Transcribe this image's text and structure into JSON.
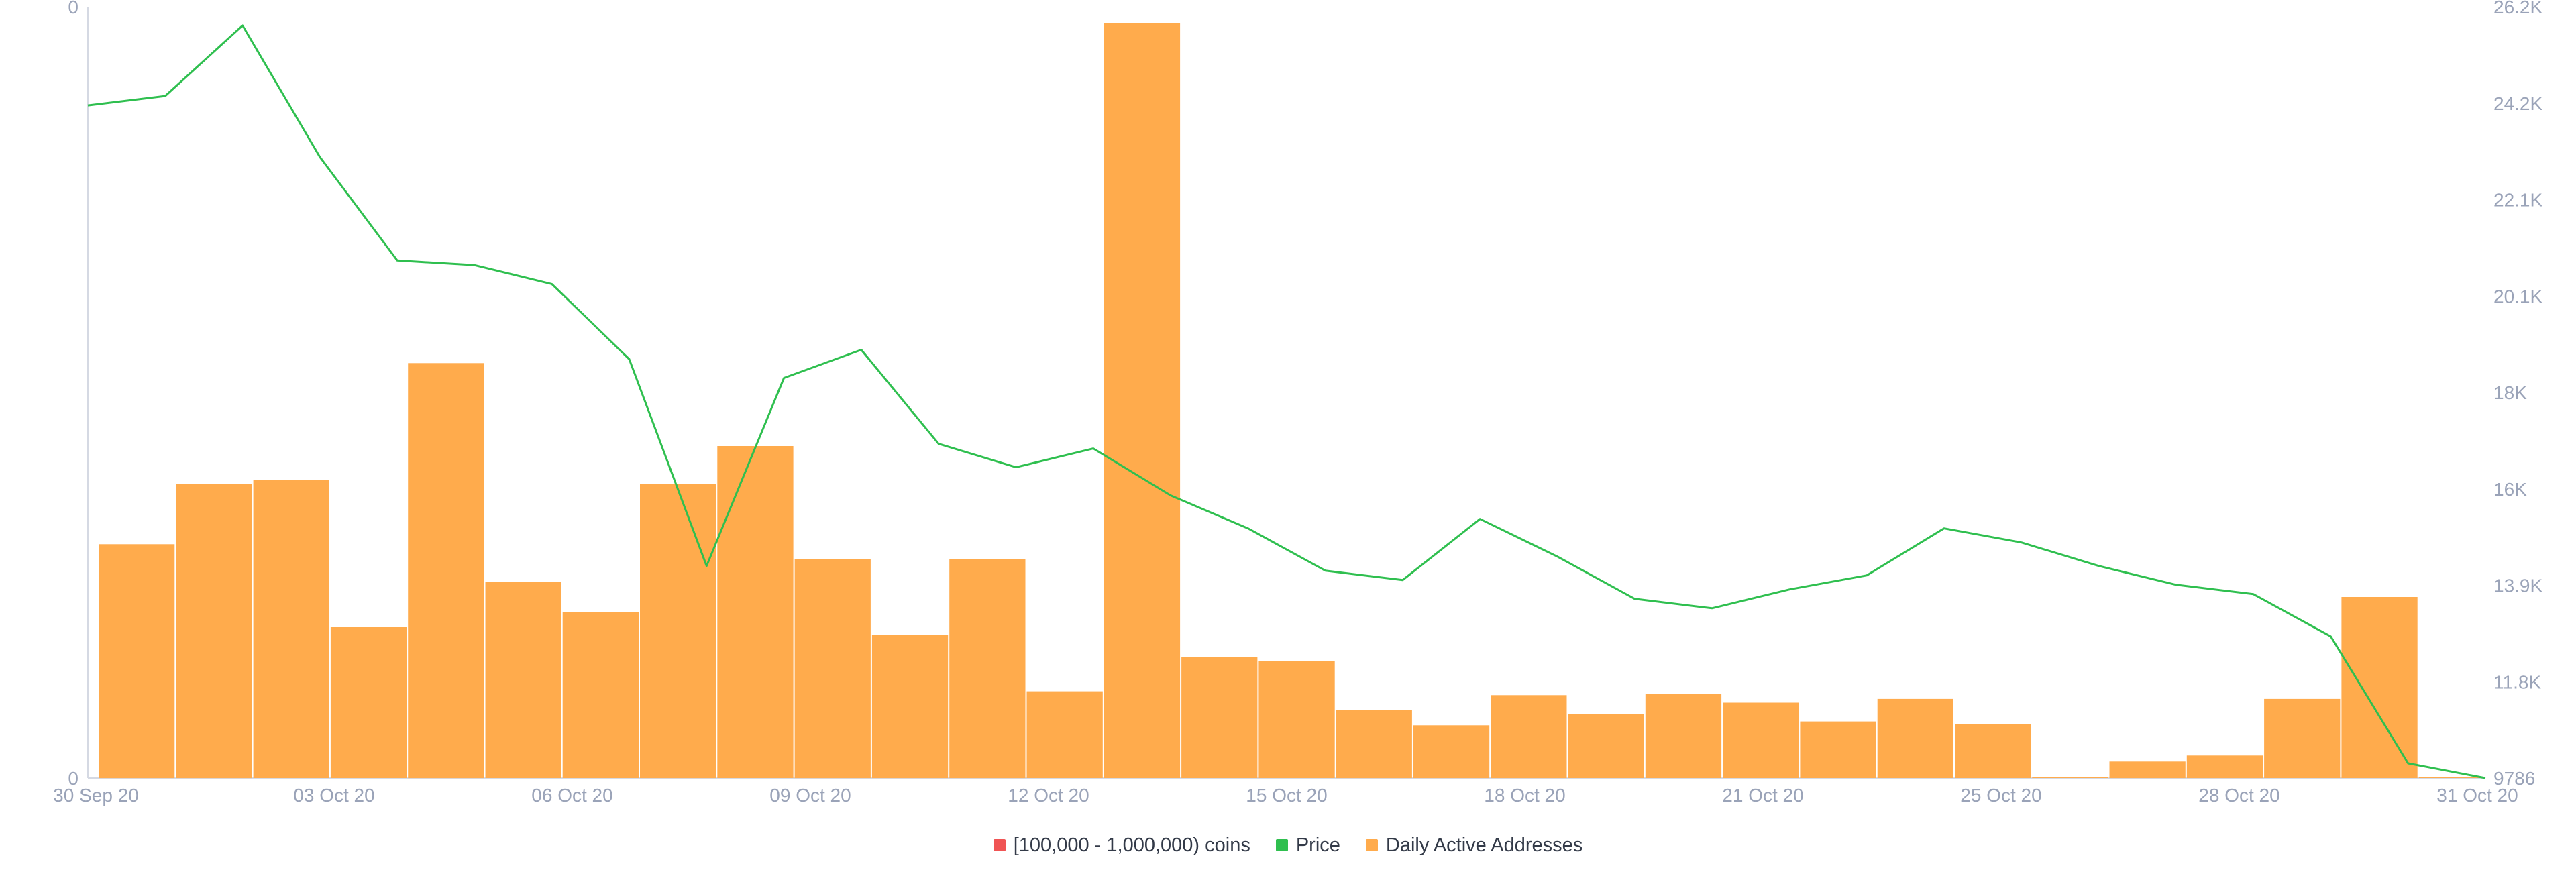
{
  "chart_data": {
    "type": "bar",
    "legend_position": "bottom",
    "grid": false,
    "x": {
      "start": "2020-09-30",
      "end": "2020-10-31",
      "tick_labels": [
        "30 Sep 20",
        "03 Oct 20",
        "06 Oct 20",
        "09 Oct 20",
        "12 Oct 20",
        "15 Oct 20",
        "18 Oct 20",
        "21 Oct 20",
        "25 Oct 20",
        "28 Oct 20",
        "31 Oct 20"
      ]
    },
    "y_left": {
      "range": [
        0,
        1
      ],
      "tick_labels": [
        "0",
        "0"
      ]
    },
    "y_right": {
      "range": [
        9786,
        26200
      ],
      "tick_labels": [
        "9786",
        "11.8K",
        "13.9K",
        "16K",
        "18K",
        "20.1K",
        "22.1K",
        "24.2K",
        "26.2K"
      ]
    },
    "series": [
      {
        "name": "[100,000  - 1,000,000) coins",
        "type": "none",
        "color": "#f05454",
        "values": []
      },
      {
        "name": "Price",
        "type": "line",
        "color": "#2fbf4f",
        "axis": "right",
        "points": [
          [
            "2020-09-30",
            24100
          ],
          [
            "2020-10-01",
            24300
          ],
          [
            "2020-10-02",
            25800
          ],
          [
            "2020-10-03",
            23000
          ],
          [
            "2020-10-04",
            20800
          ],
          [
            "2020-10-05",
            20700
          ],
          [
            "2020-10-06",
            20300
          ],
          [
            "2020-10-07",
            18700
          ],
          [
            "2020-10-08",
            14300
          ],
          [
            "2020-10-09",
            18300
          ],
          [
            "2020-10-10",
            18900
          ],
          [
            "2020-10-11",
            16900
          ],
          [
            "2020-10-12",
            16400
          ],
          [
            "2020-10-13",
            16800
          ],
          [
            "2020-10-14",
            15800
          ],
          [
            "2020-10-15",
            15100
          ],
          [
            "2020-10-16",
            14200
          ],
          [
            "2020-10-17",
            14000
          ],
          [
            "2020-10-18",
            15300
          ],
          [
            "2020-10-19",
            14500
          ],
          [
            "2020-10-20",
            13600
          ],
          [
            "2020-10-21",
            13400
          ],
          [
            "2020-10-22",
            13800
          ],
          [
            "2020-10-23",
            14100
          ],
          [
            "2020-10-24",
            15100
          ],
          [
            "2020-10-25",
            14800
          ],
          [
            "2020-10-26",
            14300
          ],
          [
            "2020-10-27",
            13900
          ],
          [
            "2020-10-28",
            13700
          ],
          [
            "2020-10-29",
            12800
          ],
          [
            "2020-10-30",
            10100
          ],
          [
            "2020-10-31",
            9786
          ]
        ]
      },
      {
        "name": "Daily Active Addresses",
        "type": "bar",
        "color": "#ffab4c",
        "axis": "left",
        "categories": [
          "2020-09-30",
          "2020-10-01",
          "2020-10-02",
          "2020-10-03",
          "2020-10-04",
          "2020-10-05",
          "2020-10-06",
          "2020-10-07",
          "2020-10-08",
          "2020-10-09",
          "2020-10-10",
          "2020-10-11",
          "2020-10-12",
          "2020-10-13",
          "2020-10-14",
          "2020-10-15",
          "2020-10-16",
          "2020-10-17",
          "2020-10-18",
          "2020-10-19",
          "2020-10-20",
          "2020-10-21",
          "2020-10-22",
          "2020-10-23",
          "2020-10-24",
          "2020-10-25",
          "2020-10-26",
          "2020-10-27",
          "2020-10-28",
          "2020-10-29",
          "2020-10-30",
          "2020-10-31"
        ],
        "values": [
          0.31,
          0.39,
          0.395,
          0.2,
          0.55,
          0.26,
          0.22,
          0.39,
          0.44,
          0.29,
          0.19,
          0.29,
          0.115,
          1.0,
          0.16,
          0.155,
          0.09,
          0.07,
          0.11,
          0.085,
          0.112,
          0.1,
          0.075,
          0.105,
          0.072,
          0.0,
          0.022,
          0.03,
          0.105,
          0.24,
          0.0,
          0.0
        ]
      }
    ]
  },
  "legend": {
    "item1": "[100,000  - 1,000,000) coins",
    "item2": "Price",
    "item3": "Daily Active Addresses"
  }
}
